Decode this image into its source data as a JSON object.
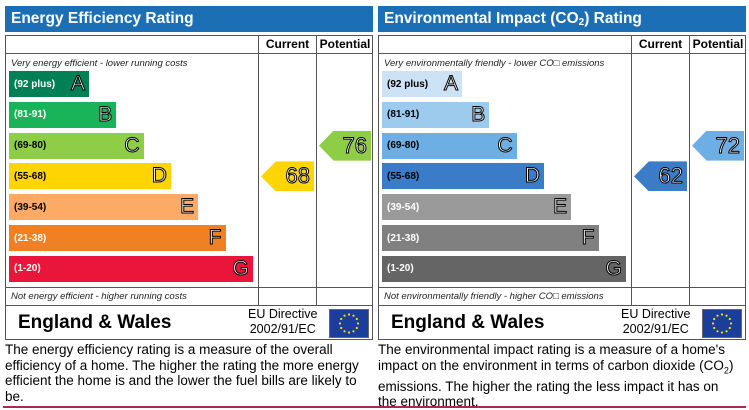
{
  "energy": {
    "title": "Energy Efficiency Rating",
    "col_current": "Current",
    "col_potential": "Potential",
    "top_note": "Very energy efficient - lower running costs",
    "bottom_note": "Not energy efficient - higher running costs",
    "bands": [
      {
        "range": "(92 plus)",
        "letter": "A",
        "color": "#008054"
      },
      {
        "range": "(81-91)",
        "letter": "B",
        "color": "#19b459"
      },
      {
        "range": "(69-80)",
        "letter": "C",
        "color": "#8dce46"
      },
      {
        "range": "(55-68)",
        "letter": "D",
        "color": "#ffd500"
      },
      {
        "range": "(39-54)",
        "letter": "E",
        "color": "#fcaa65"
      },
      {
        "range": "(21-38)",
        "letter": "F",
        "color": "#ef8023"
      },
      {
        "range": "(1-20)",
        "letter": "G",
        "color": "#e9153b"
      }
    ],
    "current": {
      "value": "68",
      "band": "D",
      "color": "#ffd500"
    },
    "potential": {
      "value": "76",
      "band": "C",
      "color": "#8dce46"
    },
    "region": "England & Wales",
    "directive_line1": "EU Directive",
    "directive_line2": "2002/91/EC",
    "description": "The energy efficiency rating is a measure of the overall efficiency of a home. The higher the rating the more energy efficient the home is and the lower the fuel bills are likely to be."
  },
  "environment": {
    "title_pre": "Environmental Impact (CO",
    "title_sub": "2",
    "title_post": ") Rating",
    "col_current": "Current",
    "col_potential": "Potential",
    "top_note": "Very environmentally friendly - lower CO□ emissions",
    "bottom_note": "Not environmentally friendly - higher CO□ emissions",
    "bands": [
      {
        "range": "(92 plus)",
        "letter": "A",
        "color": "#cde2f5"
      },
      {
        "range": "(81-91)",
        "letter": "B",
        "color": "#9ccbee"
      },
      {
        "range": "(69-80)",
        "letter": "C",
        "color": "#6daee4"
      },
      {
        "range": "(55-68)",
        "letter": "D",
        "color": "#3a7cc8"
      },
      {
        "range": "(39-54)",
        "letter": "E",
        "color": "#9a9a9a"
      },
      {
        "range": "(21-38)",
        "letter": "F",
        "color": "#808080"
      },
      {
        "range": "(1-20)",
        "letter": "G",
        "color": "#656565"
      }
    ],
    "current": {
      "value": "62",
      "band": "D",
      "color": "#3a7cc8"
    },
    "potential": {
      "value": "72",
      "band": "C",
      "color": "#6daee4"
    },
    "region": "England & Wales",
    "directive_line1": "EU Directive",
    "directive_line2": "2002/91/EC",
    "description_pre": "The environmental impact rating is a measure of a home's impact on the environment in terms of carbon dioxide (CO",
    "description_sub": "2",
    "description_post": ") emissions. The higher the rating the less impact it has on the environment."
  }
}
